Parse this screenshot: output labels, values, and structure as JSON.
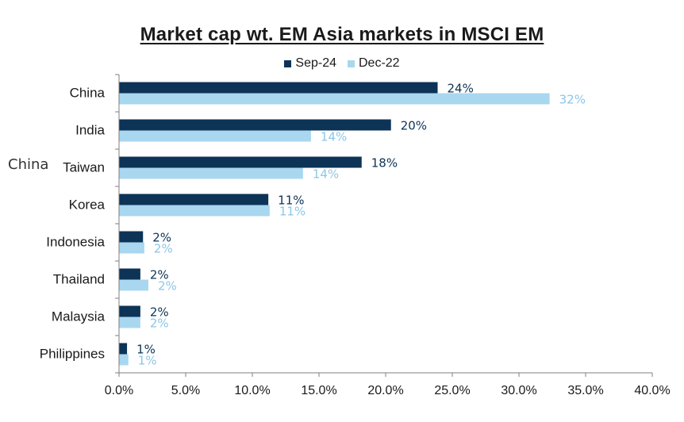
{
  "chart_data": {
    "type": "bar",
    "orientation": "horizontal",
    "title": "Market cap wt. EM Asia markets in MSCI EM",
    "categories": [
      "China",
      "India",
      "Taiwan",
      "Korea",
      "Indonesia",
      "Thailand",
      "Malaysia",
      "Philippines"
    ],
    "series": [
      {
        "name": "Sep-24",
        "color": "#0d3356",
        "values": [
          23.9,
          20.4,
          18.2,
          11.2,
          1.8,
          1.6,
          1.6,
          0.6
        ],
        "labels": [
          "24%",
          "20%",
          "18%",
          "11%",
          "2%",
          "2%",
          "2%",
          "1%"
        ]
      },
      {
        "name": "Dec-22",
        "color": "#a9d7f0",
        "label_color": "#8cc6e8",
        "values": [
          32.3,
          14.4,
          13.8,
          11.3,
          1.9,
          2.2,
          1.6,
          0.7
        ],
        "labels": [
          "32%",
          "14%",
          "14%",
          "11%",
          "2%",
          "2%",
          "2%",
          "1%"
        ]
      }
    ],
    "xlim": [
      0,
      40
    ],
    "xticks": [
      0,
      5,
      10,
      15,
      20,
      25,
      30,
      35,
      40
    ],
    "xtick_labels": [
      "0.0%",
      "5.0%",
      "10.0%",
      "15.0%",
      "20.0%",
      "25.0%",
      "30.0%",
      "35.0%",
      "40.0%"
    ],
    "grid": false,
    "legend_position": "top-center",
    "annotation": "China"
  }
}
